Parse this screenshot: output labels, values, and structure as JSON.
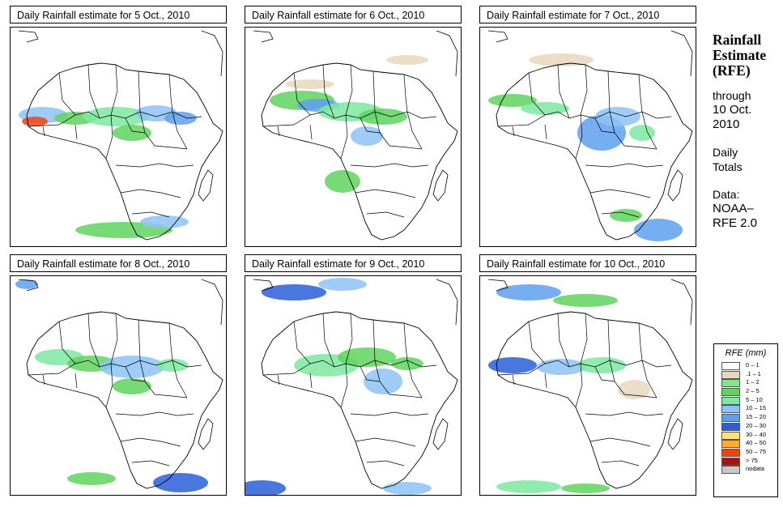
{
  "panels": [
    {
      "title": "Daily Rainfall estimate for  5 Oct., 2010"
    },
    {
      "title": "Daily Rainfall estimate for  6 Oct., 2010"
    },
    {
      "title": "Daily Rainfall estimate for  7 Oct., 2010"
    },
    {
      "title": "Daily Rainfall estimate for  8 Oct., 2010"
    },
    {
      "title": "Daily Rainfall estimate for  9 Oct., 2010"
    },
    {
      "title": "Daily Rainfall estimate for  10 Oct., 2010"
    }
  ],
  "sidebar": {
    "heading": [
      "Rainfall",
      "Estimate",
      "(RFE)"
    ],
    "through": [
      "through",
      "10 Oct.",
      "2010"
    ],
    "daily": [
      "Daily",
      "Totals"
    ],
    "data": [
      "Data:",
      "NOAA–",
      "RFE 2.0"
    ]
  },
  "legend": {
    "title": "RFE (mm)",
    "items": [
      {
        "label": "0 – 1",
        "color": "#ffffff"
      },
      {
        "label": ".1 – 1",
        "color": "#e8d7bd"
      },
      {
        "label": "1 – 2",
        "color": "#8be08b"
      },
      {
        "label": "2 – 5",
        "color": "#5fd35f"
      },
      {
        "label": "5 – 10",
        "color": "#7fe8a0"
      },
      {
        "label": "10 – 15",
        "color": "#8ec3f5"
      },
      {
        "label": "15 – 20",
        "color": "#5f9fee"
      },
      {
        "label": "20 – 30",
        "color": "#2a5fd8"
      },
      {
        "label": "30 – 40",
        "color": "#ffe27a"
      },
      {
        "label": "40 – 50",
        "color": "#ffaa33"
      },
      {
        "label": "50 – 75",
        "color": "#ee4411"
      },
      {
        "label": "> 75",
        "color": "#aa1111"
      },
      {
        "label": "nodata",
        "color": "#c8c8c8"
      }
    ]
  }
}
